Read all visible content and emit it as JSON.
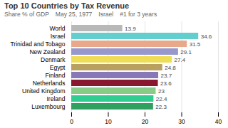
{
  "chart_data": {
    "type": "bar",
    "orientation": "horizontal",
    "title": "Top 10 Countries by Tax Revenue",
    "subtitle": "Share % of GDP",
    "annotations": [
      "May 25, 1977",
      "Israel",
      "#1 for 3 years"
    ],
    "categories": [
      "World",
      "Israel",
      "Trinidad and Tobago",
      "New Zealand",
      "Denmark",
      "Egypt",
      "Finland",
      "Netherlands",
      "United Kingdom",
      "Ireland",
      "Luxembourg"
    ],
    "values": [
      13.9,
      34.6,
      31.5,
      29.1,
      27.4,
      24.8,
      23.7,
      23.6,
      23.0,
      22.4,
      22.3
    ],
    "colors": [
      "#b8b8b8",
      "#62cece",
      "#e8a88a",
      "#9898cc",
      "#eedd55",
      "#b8a060",
      "#8878b8",
      "#881830",
      "#88cc88",
      "#30cc90",
      "#30a060"
    ],
    "xlim": [
      0,
      40
    ],
    "xticks": [
      0,
      10,
      20,
      30,
      40
    ],
    "grid": true,
    "data_labels": true
  }
}
